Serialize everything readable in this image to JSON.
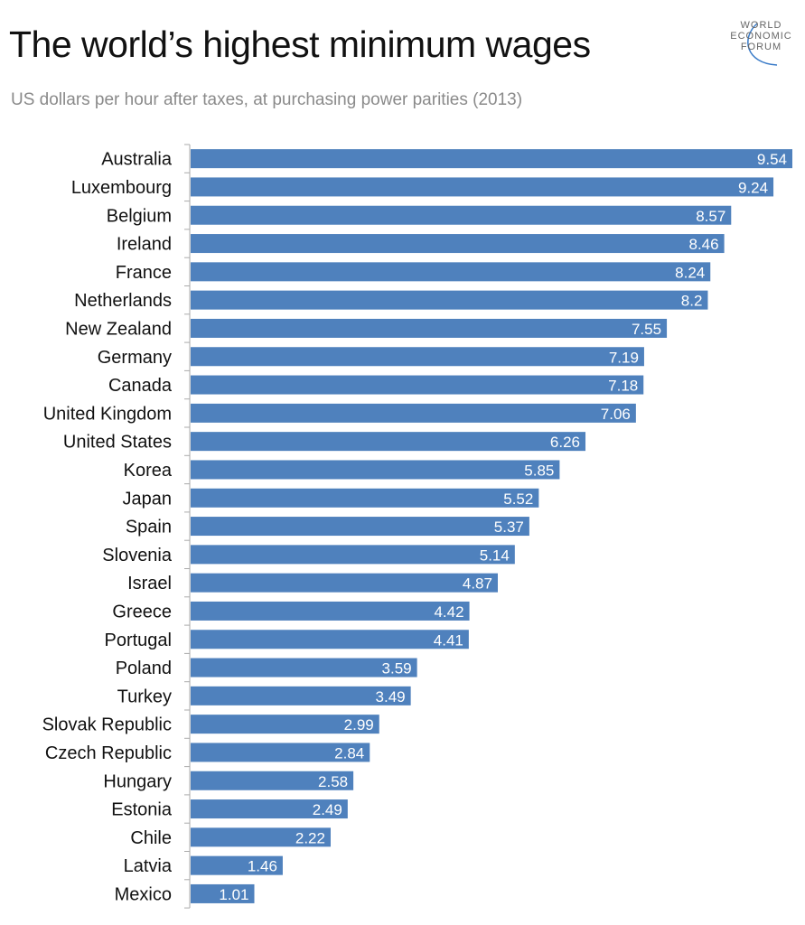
{
  "chart_data": {
    "type": "bar",
    "orientation": "horizontal",
    "title": "The world’s highest minimum wages",
    "subtitle": "US dollars per hour after taxes, at purchasing power parities (2013)",
    "logo": [
      "WORLD",
      "ECONOMIC",
      "FORUM"
    ],
    "categories": [
      "Australia",
      "Luxembourg",
      "Belgium",
      "Ireland",
      "France",
      "Netherlands",
      "New Zealand",
      "Germany",
      "Canada",
      "United Kingdom",
      "United States",
      "Korea",
      "Japan",
      "Spain",
      "Slovenia",
      "Israel",
      "Greece",
      "Portugal",
      "Poland",
      "Turkey",
      "Slovak Republic",
      "Czech Republic",
      "Hungary",
      "Estonia",
      "Chile",
      "Latvia",
      "Mexico"
    ],
    "values": [
      9.54,
      9.24,
      8.57,
      8.46,
      8.24,
      8.2,
      7.55,
      7.19,
      7.18,
      7.06,
      6.26,
      5.85,
      5.52,
      5.37,
      5.14,
      4.87,
      4.42,
      4.41,
      3.59,
      3.49,
      2.99,
      2.84,
      2.58,
      2.49,
      2.22,
      1.46,
      1.01
    ],
    "labels": [
      "9.54",
      "9.24",
      "8.57",
      "8.46",
      "8.24",
      "8.2",
      "7.55",
      "7.19",
      "7.18",
      "7.06",
      "6.26",
      "5.85",
      "5.52",
      "5.37",
      "5.14",
      "4.87",
      "4.42",
      "4.41",
      "3.59",
      "3.49",
      "2.99",
      "2.84",
      "2.58",
      "2.49",
      "2.22",
      "1.46",
      "1.01"
    ],
    "xlim": [
      0,
      9.54
    ],
    "grid": false,
    "bar_color": "#4f81bd"
  }
}
